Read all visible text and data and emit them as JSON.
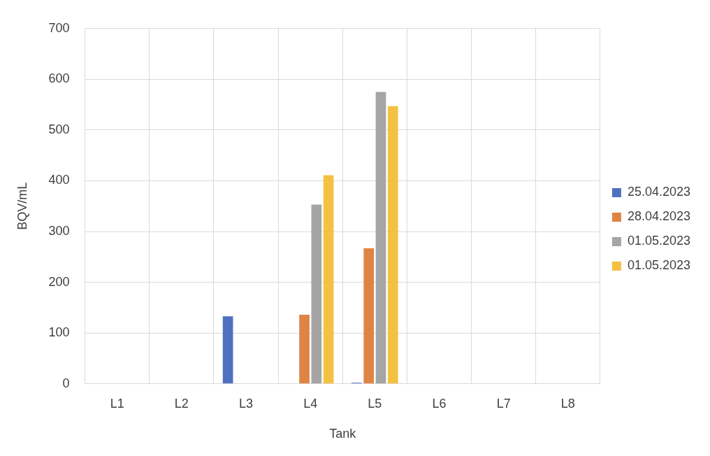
{
  "chart_data": {
    "type": "bar",
    "xlabel": "Tank",
    "ylabel": "BQV/mL",
    "categories": [
      "L1",
      "L2",
      "L3",
      "L4",
      "L5",
      "L6",
      "L7",
      "L8"
    ],
    "series": [
      {
        "name": "25.04.2023",
        "color": "#4e72bf",
        "values": [
          null,
          null,
          133,
          null,
          2,
          null,
          null,
          null
        ]
      },
      {
        "name": "28.04.2023",
        "color": "#df8445",
        "values": [
          null,
          null,
          null,
          136,
          267,
          null,
          null,
          null
        ]
      },
      {
        "name": "01.05.2023",
        "color": "#a5a5a5",
        "values": [
          null,
          null,
          null,
          353,
          575,
          null,
          null,
          null
        ]
      },
      {
        "name": "01.05.2023",
        "color": "#f4c142",
        "values": [
          null,
          null,
          null,
          411,
          547,
          null,
          null,
          null
        ]
      }
    ],
    "ylim": [
      0,
      700
    ],
    "yticks": [
      0,
      100,
      200,
      300,
      400,
      500,
      600,
      700
    ],
    "grid": true,
    "legend": "right"
  }
}
